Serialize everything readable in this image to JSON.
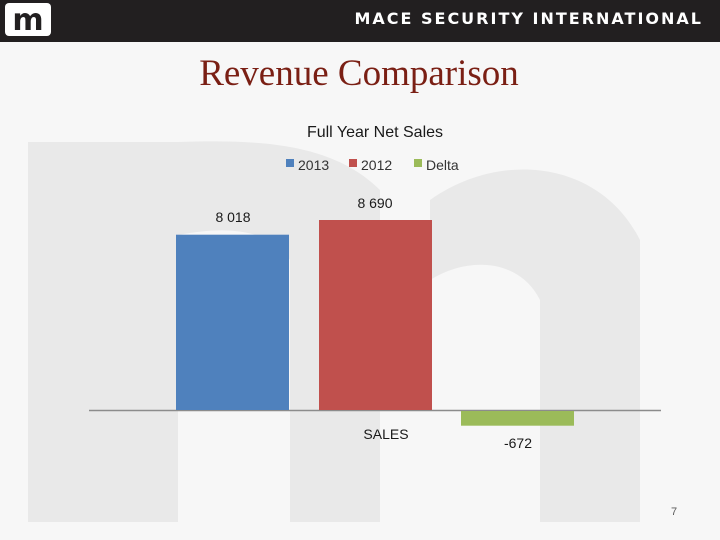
{
  "header": {
    "company_name": "MACE SECURITY INTERNATIONAL",
    "logo_letter": "m",
    "background_color": "#221f20"
  },
  "slide": {
    "title": "Revenue Comparison",
    "title_color": "#7a1f14",
    "page_number": "7"
  },
  "chart_data": {
    "type": "bar",
    "title": "Full Year Net Sales",
    "categories": [
      "SALES"
    ],
    "series": [
      {
        "name": "2013",
        "values": [
          8018
        ],
        "label": "8 018",
        "color": "#4f81bd"
      },
      {
        "name": "2012",
        "values": [
          8690
        ],
        "label": "8 690",
        "color": "#c0504d"
      },
      {
        "name": "Delta",
        "values": [
          -672
        ],
        "label": "-672",
        "color": "#9bbb59"
      }
    ],
    "xlabel": "",
    "ylabel": "",
    "ylim": [
      -1000,
      10000
    ],
    "grid": false,
    "legend": "top"
  }
}
